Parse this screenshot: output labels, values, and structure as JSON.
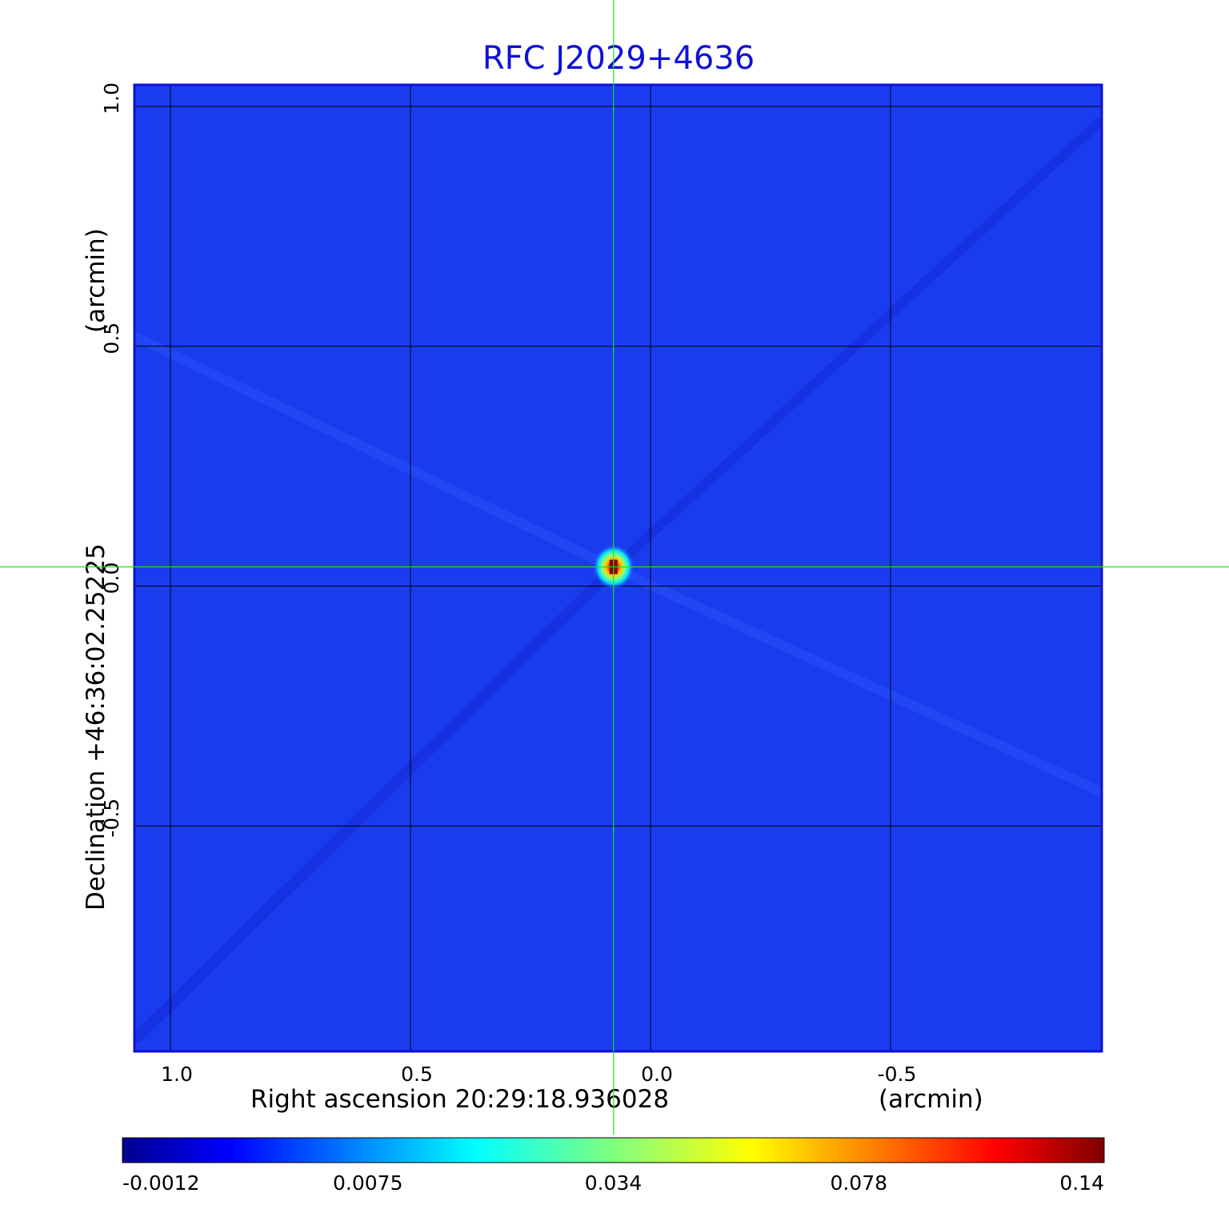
{
  "chart_data": {
    "type": "heatmap",
    "title": "RFC J2029+4636",
    "xlabel": "Right ascension  20:29:18.936028",
    "xunit": "(arcmin)",
    "ylabel": "Declination  +46:36:02.25225",
    "yunit": "(arcmin)",
    "x_ticks": [
      "1.0",
      "0.5",
      "0.0",
      "-0.5"
    ],
    "y_ticks": [
      "1.0",
      "0.5",
      "0.0",
      "-0.5"
    ],
    "xlim": [
      1.075,
      -0.94
    ],
    "ylim": [
      -0.97,
      1.045
    ],
    "grid": true,
    "crosshair": {
      "x": 0.077,
      "y": 0.04,
      "color": "#22dd22"
    },
    "source": {
      "x": 0.077,
      "y": 0.04,
      "peak": 0.14
    },
    "colorbar": {
      "colormap": "jet",
      "ticks": [
        "-0.0012",
        "0.0075",
        "0.034",
        "0.078",
        "0.14"
      ]
    },
    "colors": {
      "title": "#1010d8",
      "frame": "#1010d8",
      "background": "#1a3cf0",
      "grid": "#000000"
    }
  }
}
